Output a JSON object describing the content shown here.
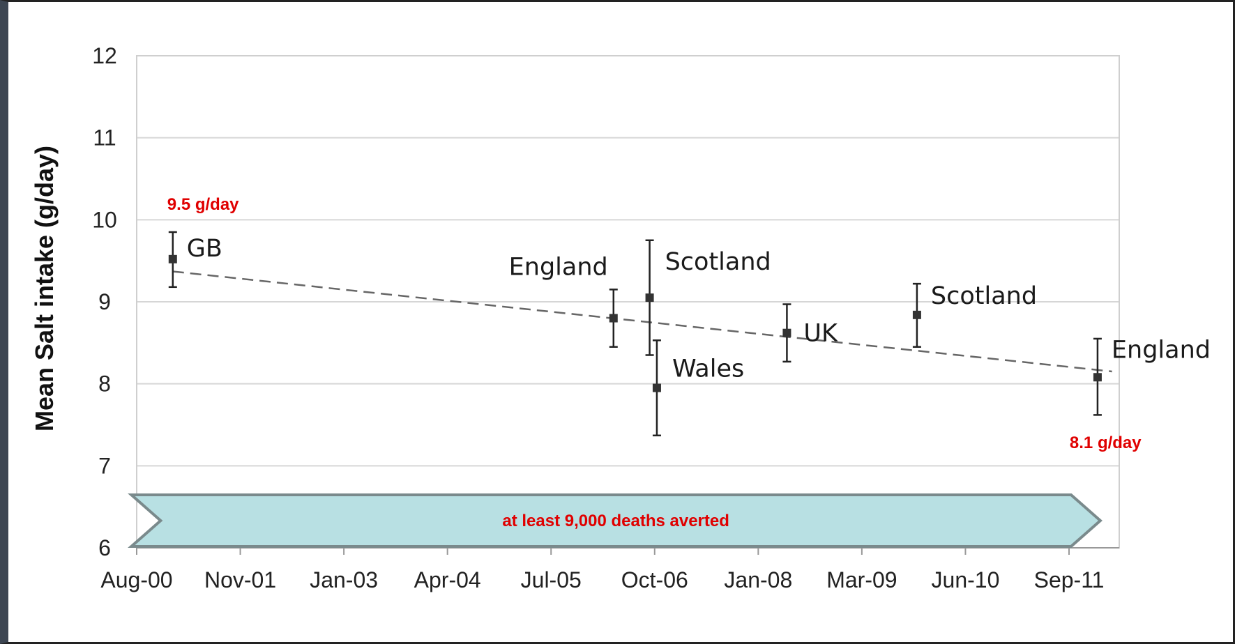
{
  "chart_data": {
    "type": "scatter",
    "title": "",
    "xlabel": "",
    "ylabel": "Mean Salt intake (g/day)",
    "ylim": [
      6,
      12
    ],
    "yticks": [
      6,
      7,
      8,
      9,
      10,
      11,
      12
    ],
    "x_is_date": true,
    "xlim": [
      "2000-08",
      "2011-12"
    ],
    "xticks": [
      "Aug-00",
      "Nov-01",
      "Jan-03",
      "Apr-04",
      "Jul-05",
      "Oct-06",
      "Jan-08",
      "Mar-09",
      "Jun-10",
      "Sep-11"
    ],
    "grid": "horizontal",
    "points": [
      {
        "label": "GB",
        "date": "2001-01",
        "y": 9.52,
        "err_low": 9.18,
        "err_high": 9.85
      },
      {
        "label": "England",
        "date": "2006-02",
        "y": 8.8,
        "err_low": 8.45,
        "err_high": 9.15
      },
      {
        "label": "Scotland",
        "date": "2006-07",
        "y": 9.05,
        "err_low": 8.35,
        "err_high": 9.75
      },
      {
        "label": "Wales",
        "date": "2006-08",
        "y": 7.95,
        "err_low": 7.37,
        "err_high": 8.53
      },
      {
        "label": "UK",
        "date": "2008-02",
        "y": 8.62,
        "err_low": 8.27,
        "err_high": 8.97
      },
      {
        "label": "Scotland",
        "date": "2009-08",
        "y": 8.84,
        "err_low": 8.45,
        "err_high": 9.22
      },
      {
        "label": "England",
        "date": "2011-09",
        "y": 8.08,
        "err_low": 7.62,
        "err_high": 8.55
      }
    ],
    "trendline": {
      "style": "dashed",
      "from": {
        "date": "2001-01",
        "y": 9.37
      },
      "to": {
        "date": "2011-11",
        "y": 8.15
      }
    },
    "annotations": [
      {
        "text": "9.5 g/day",
        "color": "#e00000"
      },
      {
        "text": "8.1 g/day",
        "color": "#e00000"
      }
    ],
    "banner": {
      "text": "at least 9,000 deaths averted",
      "fill": "#b8e0e3",
      "stroke": "#7a8a8c",
      "text_color": "#e00000",
      "from_date": "2000-09",
      "to_date": "2011-09"
    }
  }
}
